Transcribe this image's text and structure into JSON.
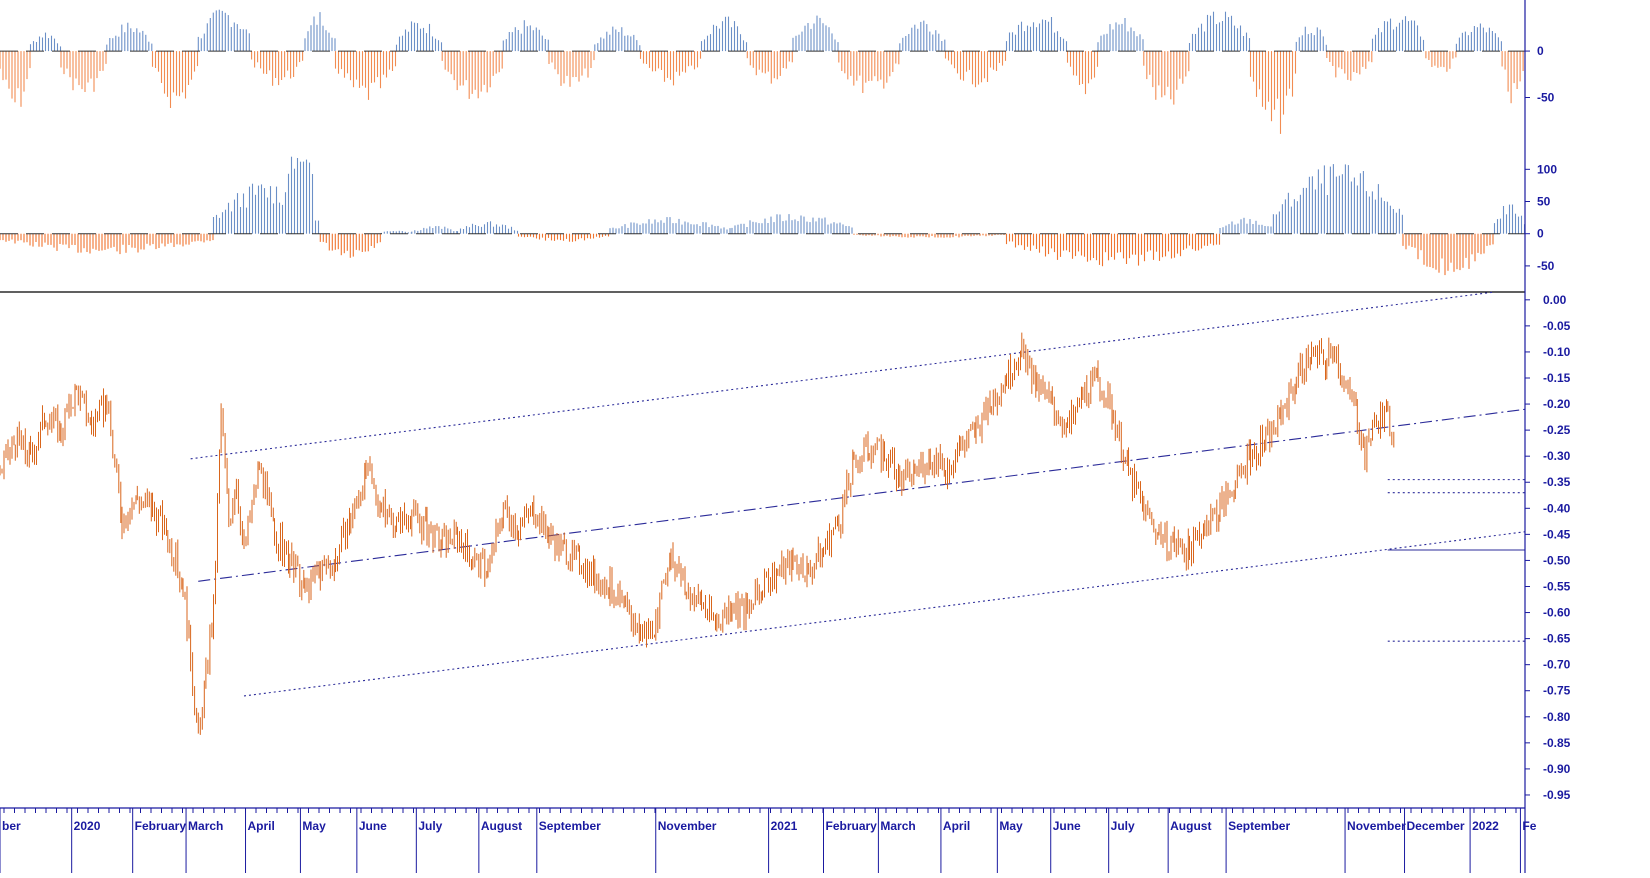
{
  "chart_data": [
    {
      "type": "bar",
      "panel": "upper-oscillator",
      "ylim": [
        -85,
        55
      ],
      "y_ticks": [
        "0",
        "-50"
      ],
      "y_tick_values": [
        0,
        -50
      ],
      "zero_line": 0,
      "colors": {
        "positive": "#6b8fc7",
        "negative": "#f28c52",
        "zero_line": "#333333"
      },
      "segments": [
        {
          "x0": 0.0,
          "x1": 0.02,
          "v": -55
        },
        {
          "x0": 0.02,
          "x1": 0.04,
          "v": 18
        },
        {
          "x0": 0.04,
          "x1": 0.07,
          "v": -40
        },
        {
          "x0": 0.07,
          "x1": 0.1,
          "v": 25
        },
        {
          "x0": 0.1,
          "x1": 0.13,
          "v": -50
        },
        {
          "x0": 0.13,
          "x1": 0.165,
          "v": 38
        },
        {
          "x0": 0.165,
          "x1": 0.2,
          "v": -30
        },
        {
          "x0": 0.2,
          "x1": 0.22,
          "v": 35
        },
        {
          "x0": 0.22,
          "x1": 0.26,
          "v": -45
        },
        {
          "x0": 0.26,
          "x1": 0.29,
          "v": 28
        },
        {
          "x0": 0.29,
          "x1": 0.33,
          "v": -42
        },
        {
          "x0": 0.33,
          "x1": 0.36,
          "v": 26
        },
        {
          "x0": 0.36,
          "x1": 0.39,
          "v": -35
        },
        {
          "x0": 0.39,
          "x1": 0.42,
          "v": 22
        },
        {
          "x0": 0.42,
          "x1": 0.46,
          "v": -30
        },
        {
          "x0": 0.46,
          "x1": 0.49,
          "v": 30
        },
        {
          "x0": 0.49,
          "x1": 0.52,
          "v": -28
        },
        {
          "x0": 0.52,
          "x1": 0.55,
          "v": 32
        },
        {
          "x0": 0.55,
          "x1": 0.59,
          "v": -38
        },
        {
          "x0": 0.59,
          "x1": 0.62,
          "v": 30
        },
        {
          "x0": 0.62,
          "x1": 0.66,
          "v": -30
        },
        {
          "x0": 0.66,
          "x1": 0.7,
          "v": 35
        },
        {
          "x0": 0.7,
          "x1": 0.72,
          "v": -40
        },
        {
          "x0": 0.72,
          "x1": 0.75,
          "v": 30
        },
        {
          "x0": 0.75,
          "x1": 0.78,
          "v": -55
        },
        {
          "x0": 0.78,
          "x1": 0.82,
          "v": 35
        },
        {
          "x0": 0.82,
          "x1": 0.85,
          "v": -75
        },
        {
          "x0": 0.85,
          "x1": 0.87,
          "v": 25
        },
        {
          "x0": 0.87,
          "x1": 0.9,
          "v": -30
        },
        {
          "x0": 0.9,
          "x1": 0.935,
          "v": 34
        },
        {
          "x0": 0.935,
          "x1": 0.955,
          "v": -20
        },
        {
          "x0": 0.955,
          "x1": 0.985,
          "v": 25
        },
        {
          "x0": 0.985,
          "x1": 1.0,
          "v": -45
        }
      ]
    },
    {
      "type": "bar",
      "panel": "lower-oscillator",
      "ylim": [
        -75,
        130
      ],
      "y_ticks": [
        "100",
        "50",
        "0",
        "-50"
      ],
      "y_tick_values": [
        100,
        50,
        0,
        -50
      ],
      "zero_line": 0,
      "colors": {
        "positive": "#6b8fc7",
        "negative": "#f0742f",
        "zero_line": "#333333"
      },
      "segments": [
        {
          "x0": 0.0,
          "x1": 0.14,
          "v": -25
        },
        {
          "x0": 0.14,
          "x1": 0.21,
          "v": 65,
          "peak": 120
        },
        {
          "x0": 0.21,
          "x1": 0.25,
          "v": -35
        },
        {
          "x0": 0.25,
          "x1": 0.27,
          "v": 5
        },
        {
          "x0": 0.27,
          "x1": 0.3,
          "v": 10
        },
        {
          "x0": 0.3,
          "x1": 0.34,
          "v": 15
        },
        {
          "x0": 0.34,
          "x1": 0.4,
          "v": -10
        },
        {
          "x0": 0.4,
          "x1": 0.48,
          "v": 20
        },
        {
          "x0": 0.48,
          "x1": 0.56,
          "v": 25
        },
        {
          "x0": 0.56,
          "x1": 0.66,
          "v": -5
        },
        {
          "x0": 0.66,
          "x1": 0.8,
          "v": -40
        },
        {
          "x0": 0.8,
          "x1": 0.835,
          "v": 20
        },
        {
          "x0": 0.835,
          "x1": 0.92,
          "v": 85
        },
        {
          "x0": 0.92,
          "x1": 0.98,
          "v": -50
        },
        {
          "x0": 0.98,
          "x1": 1.0,
          "v": 40
        }
      ]
    },
    {
      "type": "line",
      "panel": "price",
      "ylim": [
        -0.975,
        0.015
      ],
      "y_ticks": [
        "0.00",
        "-0.05",
        "-0.10",
        "-0.15",
        "-0.20",
        "-0.25",
        "-0.30",
        "-0.35",
        "-0.40",
        "-0.45",
        "-0.50",
        "-0.55",
        "-0.60",
        "-0.65",
        "-0.70",
        "-0.75",
        "-0.80",
        "-0.85",
        "-0.90",
        "-0.95"
      ],
      "y_tick_values": [
        0.0,
        -0.05,
        -0.1,
        -0.15,
        -0.2,
        -0.25,
        -0.3,
        -0.35,
        -0.4,
        -0.45,
        -0.5,
        -0.55,
        -0.6,
        -0.65,
        -0.7,
        -0.75,
        -0.8,
        -0.85,
        -0.9,
        -0.95
      ],
      "series_color": "#d9661c",
      "series": [
        {
          "values": [
            [
              0.0,
              -0.33
            ],
            [
              0.01,
              -0.27
            ],
            [
              0.02,
              -0.3
            ],
            [
              0.03,
              -0.22
            ],
            [
              0.04,
              -0.25
            ],
            [
              0.05,
              -0.17
            ],
            [
              0.06,
              -0.24
            ],
            [
              0.07,
              -0.2
            ],
            [
              0.08,
              -0.42
            ],
            [
              0.09,
              -0.38
            ],
            [
              0.1,
              -0.4
            ],
            [
              0.11,
              -0.45
            ],
            [
              0.12,
              -0.55
            ],
            [
              0.125,
              -0.68
            ],
            [
              0.13,
              -0.85
            ],
            [
              0.135,
              -0.72
            ],
            [
              0.14,
              -0.6
            ],
            [
              0.145,
              -0.22
            ],
            [
              0.15,
              -0.42
            ],
            [
              0.155,
              -0.35
            ],
            [
              0.16,
              -0.48
            ],
            [
              0.17,
              -0.32
            ],
            [
              0.18,
              -0.45
            ],
            [
              0.19,
              -0.5
            ],
            [
              0.2,
              -0.56
            ],
            [
              0.21,
              -0.52
            ],
            [
              0.22,
              -0.5
            ],
            [
              0.23,
              -0.42
            ],
            [
              0.24,
              -0.33
            ],
            [
              0.25,
              -0.4
            ],
            [
              0.26,
              -0.43
            ],
            [
              0.27,
              -0.41
            ],
            [
              0.28,
              -0.44
            ],
            [
              0.29,
              -0.47
            ],
            [
              0.3,
              -0.45
            ],
            [
              0.31,
              -0.5
            ],
            [
              0.32,
              -0.52
            ],
            [
              0.33,
              -0.4
            ],
            [
              0.34,
              -0.44
            ],
            [
              0.35,
              -0.4
            ],
            [
              0.36,
              -0.45
            ],
            [
              0.37,
              -0.48
            ],
            [
              0.38,
              -0.5
            ],
            [
              0.39,
              -0.53
            ],
            [
              0.4,
              -0.55
            ],
            [
              0.41,
              -0.6
            ],
            [
              0.42,
              -0.64
            ],
            [
              0.43,
              -0.62
            ],
            [
              0.44,
              -0.48
            ],
            [
              0.45,
              -0.56
            ],
            [
              0.46,
              -0.58
            ],
            [
              0.47,
              -0.62
            ],
            [
              0.48,
              -0.58
            ],
            [
              0.49,
              -0.6
            ],
            [
              0.5,
              -0.55
            ],
            [
              0.51,
              -0.52
            ],
            [
              0.52,
              -0.5
            ],
            [
              0.53,
              -0.52
            ],
            [
              0.54,
              -0.48
            ],
            [
              0.55,
              -0.42
            ],
            [
              0.56,
              -0.32
            ],
            [
              0.57,
              -0.28
            ],
            [
              0.58,
              -0.3
            ],
            [
              0.59,
              -0.35
            ],
            [
              0.6,
              -0.33
            ],
            [
              0.61,
              -0.3
            ],
            [
              0.62,
              -0.33
            ],
            [
              0.63,
              -0.28
            ],
            [
              0.64,
              -0.25
            ],
            [
              0.65,
              -0.2
            ],
            [
              0.66,
              -0.14
            ],
            [
              0.67,
              -0.1
            ],
            [
              0.68,
              -0.17
            ],
            [
              0.69,
              -0.2
            ],
            [
              0.7,
              -0.25
            ],
            [
              0.71,
              -0.18
            ],
            [
              0.72,
              -0.15
            ],
            [
              0.73,
              -0.22
            ],
            [
              0.74,
              -0.33
            ],
            [
              0.75,
              -0.4
            ],
            [
              0.76,
              -0.45
            ],
            [
              0.77,
              -0.47
            ],
            [
              0.78,
              -0.48
            ],
            [
              0.79,
              -0.43
            ],
            [
              0.8,
              -0.4
            ],
            [
              0.81,
              -0.35
            ],
            [
              0.82,
              -0.3
            ],
            [
              0.83,
              -0.27
            ],
            [
              0.84,
              -0.22
            ],
            [
              0.85,
              -0.15
            ],
            [
              0.86,
              -0.1
            ],
            [
              0.87,
              -0.12
            ],
            [
              0.875,
              -0.08
            ],
            [
              0.88,
              -0.15
            ],
            [
              0.89,
              -0.22
            ],
            [
              0.895,
              -0.3
            ],
            [
              0.9,
              -0.24
            ],
            [
              0.91,
              -0.22
            ],
            [
              0.915,
              -0.26
            ]
          ]
        }
      ],
      "trendlines": [
        {
          "style": "dotted",
          "x0": 0.125,
          "y0": -0.305,
          "x1": 0.98,
          "y1": 0.015
        },
        {
          "style": "dotted",
          "x0": 0.16,
          "y0": -0.76,
          "x1": 1.0,
          "y1": -0.445
        },
        {
          "style": "dashdot",
          "x0": 0.13,
          "y0": -0.54,
          "x1": 1.0,
          "y1": -0.21
        }
      ],
      "levels": [
        {
          "style": "dotted",
          "x0": 0.91,
          "y": -0.345
        },
        {
          "style": "dotted",
          "x0": 0.91,
          "y": -0.37
        },
        {
          "style": "solid",
          "x0": 0.91,
          "y": -0.48
        },
        {
          "style": "dotted",
          "x0": 0.91,
          "y": -0.655
        }
      ],
      "categories": [
        "ber",
        "2020",
        "February",
        "March",
        "April",
        "May",
        "June",
        "July",
        "August",
        "September",
        "November",
        "2021",
        "February",
        "March",
        "April",
        "May",
        "June",
        "July",
        "August",
        "September",
        "November",
        "December",
        "2022",
        "Fe"
      ],
      "category_positions": [
        0.0,
        0.047,
        0.087,
        0.122,
        0.161,
        0.197,
        0.234,
        0.273,
        0.314,
        0.352,
        0.43,
        0.504,
        0.54,
        0.576,
        0.617,
        0.654,
        0.689,
        0.727,
        0.766,
        0.804,
        0.882,
        0.921,
        0.964,
        0.997
      ]
    }
  ]
}
